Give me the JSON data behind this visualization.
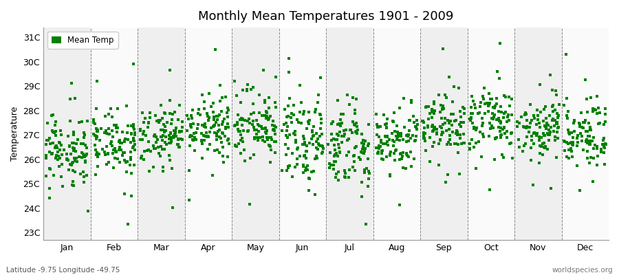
{
  "title": "Monthly Mean Temperatures 1901 - 2009",
  "ylabel": "Temperature",
  "ytick_labels": [
    "23C",
    "24C",
    "25C",
    "26C",
    "27C",
    "28C",
    "29C",
    "30C",
    "31C"
  ],
  "ytick_values": [
    23,
    24,
    25,
    26,
    27,
    28,
    29,
    30,
    31
  ],
  "ylim": [
    22.7,
    31.4
  ],
  "months": [
    "Jan",
    "Feb",
    "Mar",
    "Apr",
    "May",
    "Jun",
    "Jul",
    "Aug",
    "Sep",
    "Oct",
    "Nov",
    "Dec"
  ],
  "month_means": [
    26.4,
    26.7,
    27.0,
    27.3,
    27.3,
    26.7,
    26.5,
    26.8,
    27.3,
    27.6,
    27.2,
    27.0
  ],
  "month_stds": [
    0.75,
    0.65,
    0.6,
    0.55,
    0.6,
    0.75,
    0.8,
    0.65,
    0.65,
    0.65,
    0.65,
    0.65
  ],
  "point_color": "#008000",
  "marker": "s",
  "marker_size": 2.5,
  "band_color_odd": "#efefef",
  "band_color_even": "#fafafa",
  "legend_label": "Mean Temp",
  "bottom_left": "Latitude -9.75 Longitude -49.75",
  "bottom_right": "worldspecies.org",
  "n_years": 109,
  "seed": 42,
  "xlim_start": 0,
  "xlim_end": 12
}
